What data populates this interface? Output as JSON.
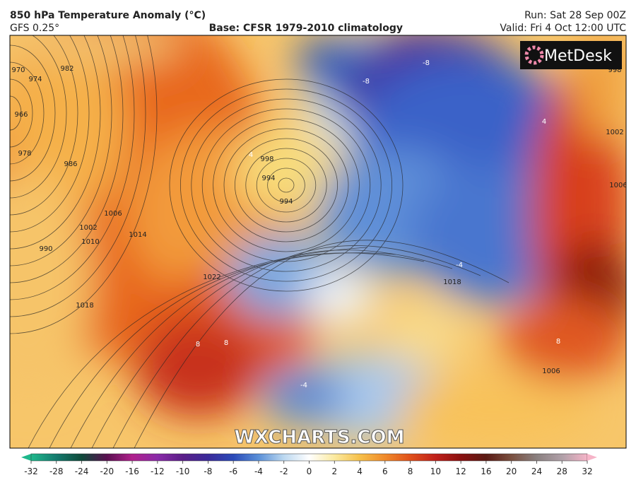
{
  "header": {
    "title": "850 hPa Temperature Anomaly (°C)",
    "model": "GFS 0.25°",
    "base": "Base: CFSR 1979-2010 climatology",
    "run": "Run: Sat 28 Sep 00Z",
    "valid": "Valid: Fri 4 Oct 12:00 UTC"
  },
  "logo": "MetDesk",
  "watermark": "WXCHARTS.COM",
  "isobar_labels": [
    "970",
    "966",
    "974",
    "978",
    "982",
    "986",
    "990",
    "994",
    "998",
    "1002",
    "1006",
    "1010",
    "1014",
    "1018",
    "1022",
    "1018",
    "994",
    "1002",
    "1006",
    "998",
    "1006"
  ],
  "anomaly_labels": [
    "-8",
    "-8",
    "4",
    "8",
    "8",
    "8",
    "-4",
    "-4",
    "4"
  ],
  "colorbar": {
    "ticks": [
      -32,
      -28,
      -24,
      -20,
      -16,
      -12,
      -10,
      -8,
      -6,
      -4,
      -2,
      0,
      2,
      4,
      6,
      8,
      10,
      12,
      16,
      20,
      24,
      28,
      32
    ]
  }
}
